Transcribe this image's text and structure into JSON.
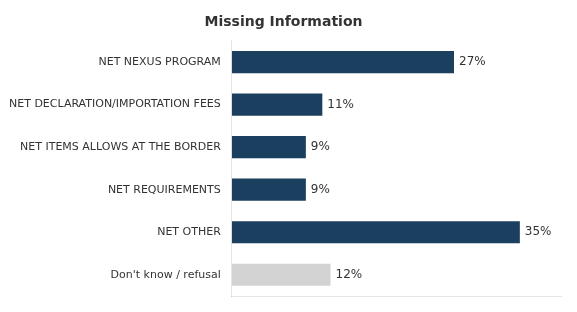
{
  "chart_data": {
    "type": "bar",
    "orientation": "horizontal",
    "title": "Missing Information",
    "categories": [
      "Don't know / refusal",
      "NET OTHER",
      "NET REQUIREMENTS",
      "NET ITEMS ALLOWS AT THE BORDER",
      "NET DECLARATION/IMPORTATION FEES",
      "NET NEXUS PROGRAM"
    ],
    "values": [
      12,
      35,
      9,
      9,
      11,
      27
    ],
    "value_labels": [
      "12%",
      "35%",
      "9%",
      "9%",
      "11%",
      "27%"
    ],
    "colors": [
      "#d3d3d3",
      "#1b3f5e",
      "#1b3f5e",
      "#1b3f5e",
      "#1b3f5e",
      "#1b3f5e"
    ],
    "xlim": [
      0,
      40
    ],
    "grid": false,
    "data_labels": true,
    "tick_labels": "y"
  }
}
